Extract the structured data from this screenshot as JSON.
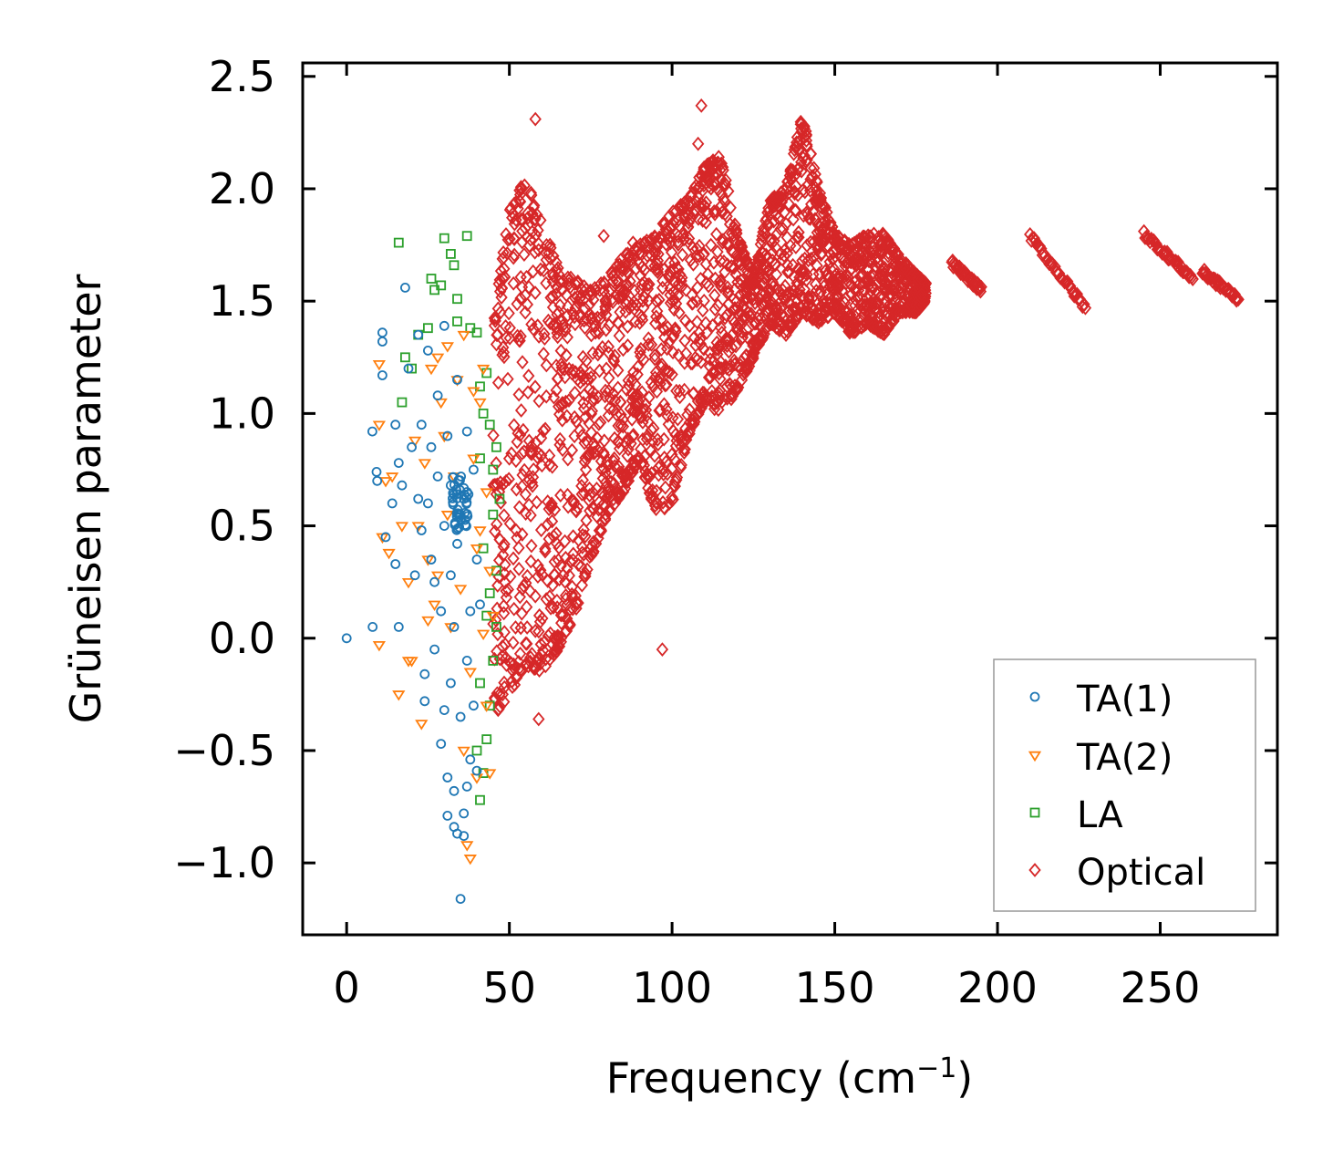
{
  "chart_data": {
    "type": "scatter",
    "title": "",
    "xlabel": "Frequency (cm",
    "xlabel_superscript": "−1",
    "xlabel_suffix": ")",
    "ylabel": "Grüneisen parameter",
    "xlim": [
      -13.5,
      286
    ],
    "ylim": [
      -1.32,
      2.56
    ],
    "xticks": [
      0,
      50,
      100,
      150,
      200,
      250
    ],
    "xtick_labels": [
      "0",
      "50",
      "100",
      "150",
      "200",
      "250"
    ],
    "yticks": [
      -1.0,
      -0.5,
      0.0,
      0.5,
      1.0,
      1.5,
      2.0,
      2.5
    ],
    "ytick_labels": [
      "−1.0",
      "−0.5",
      "0.0",
      "0.5",
      "1.0",
      "1.5",
      "2.0",
      "2.5"
    ],
    "grid": false,
    "legend_position": "lower-right",
    "series": [
      {
        "name": "TA(1)",
        "label": "TA(1)",
        "marker": "circle",
        "color": "#1f77b4",
        "points": [
          [
            0,
            0
          ],
          [
            8,
            0.05
          ],
          [
            7.9,
            0.92
          ],
          [
            9.2,
            0.74
          ],
          [
            9.4,
            0.7
          ],
          [
            11,
            1.36
          ],
          [
            11,
            1.32
          ],
          [
            11,
            1.17
          ],
          [
            12,
            0.45
          ],
          [
            14,
            0.6
          ],
          [
            15,
            0.95
          ],
          [
            15,
            0.33
          ],
          [
            16,
            0.78
          ],
          [
            16,
            0.05
          ],
          [
            17,
            0.68
          ],
          [
            18,
            1.56
          ],
          [
            19,
            1.2
          ],
          [
            20,
            0.85
          ],
          [
            22,
            1.35
          ],
          [
            22,
            0.62
          ],
          [
            23,
            0.48
          ],
          [
            24,
            -0.16
          ],
          [
            24,
            -0.28
          ],
          [
            25,
            1.28
          ],
          [
            26,
            0.85
          ],
          [
            27,
            0.25
          ],
          [
            28,
            1.08
          ],
          [
            29,
            -0.47
          ],
          [
            30,
            1.39
          ],
          [
            30,
            -0.32
          ],
          [
            31,
            -0.62
          ],
          [
            31,
            -0.79
          ],
          [
            32,
            0.28
          ],
          [
            33,
            -0.68
          ],
          [
            33,
            -0.84
          ],
          [
            34,
            1.15
          ],
          [
            34,
            -0.87
          ],
          [
            35,
            0.55
          ],
          [
            35,
            -1.16
          ],
          [
            36,
            -0.78
          ],
          [
            36,
            -0.88
          ],
          [
            37,
            -0.66
          ],
          [
            37,
            0.92
          ],
          [
            38,
            -0.54
          ],
          [
            39,
            0.75
          ],
          [
            40,
            -0.59
          ],
          [
            40,
            0.35
          ],
          [
            41,
            0.15
          ],
          [
            26,
            0.35
          ],
          [
            28,
            0.72
          ],
          [
            29,
            0.12
          ],
          [
            31,
            0.9
          ],
          [
            32,
            -0.2
          ],
          [
            33,
            0.05
          ],
          [
            35,
            -0.35
          ],
          [
            37,
            -0.1
          ],
          [
            21,
            0.28
          ],
          [
            23,
            0.95
          ],
          [
            25,
            0.6
          ],
          [
            27,
            -0.05
          ],
          [
            30,
            0.5
          ],
          [
            32,
            0.68
          ],
          [
            34,
            0.42
          ],
          [
            36,
            0.62
          ],
          [
            38,
            0.12
          ],
          [
            39,
            -0.3
          ]
        ],
        "cluster": {
          "center": [
            35,
            0.6
          ],
          "spread": [
            2.5,
            0.12
          ],
          "count": 40
        }
      },
      {
        "name": "TA(2)",
        "label": "TA(2)",
        "marker": "triangle-down",
        "color": "#ff7f0e",
        "points": [
          [
            10,
            0.95
          ],
          [
            10,
            1.22
          ],
          [
            10,
            -0.03
          ],
          [
            11,
            0.45
          ],
          [
            12,
            0.7
          ],
          [
            13,
            0.38
          ],
          [
            14,
            0.72
          ],
          [
            16,
            -0.25
          ],
          [
            17,
            0.5
          ],
          [
            19,
            -0.1
          ],
          [
            19,
            0.25
          ],
          [
            20,
            -0.1
          ],
          [
            21,
            0.88
          ],
          [
            22,
            0.5
          ],
          [
            23,
            -0.38
          ],
          [
            24,
            0.78
          ],
          [
            25,
            0.35
          ],
          [
            25,
            0.08
          ],
          [
            27,
            0.15
          ],
          [
            28,
            1.25
          ],
          [
            29,
            1.05
          ],
          [
            30,
            0.9
          ],
          [
            31,
            0.55
          ],
          [
            32,
            0.05
          ],
          [
            34,
            1.15
          ],
          [
            36,
            -0.5
          ],
          [
            37,
            -0.92
          ],
          [
            38,
            -0.98
          ],
          [
            39,
            0.8
          ],
          [
            40,
            0.4
          ],
          [
            41,
            1.05
          ],
          [
            42,
            1.2
          ],
          [
            43,
            0.65
          ],
          [
            43,
            -0.3
          ],
          [
            44,
            0.3
          ],
          [
            44,
            -0.6
          ],
          [
            45,
            0.1
          ],
          [
            26,
            1.2
          ],
          [
            28,
            0.28
          ],
          [
            33,
            0.72
          ],
          [
            35,
            0.22
          ],
          [
            38,
            -0.15
          ],
          [
            40,
            -0.62
          ],
          [
            42,
            0.02
          ],
          [
            31,
            1.3
          ],
          [
            36,
            1.35
          ],
          [
            39,
            1.1
          ],
          [
            41,
            0.48
          ]
        ]
      },
      {
        "name": "LA",
        "label": "LA",
        "marker": "square",
        "color": "#2ca02c",
        "points": [
          [
            16,
            1.76
          ],
          [
            17,
            1.05
          ],
          [
            18,
            1.25
          ],
          [
            20,
            1.2
          ],
          [
            22,
            1.35
          ],
          [
            25,
            1.38
          ],
          [
            26,
            1.6
          ],
          [
            27,
            1.55
          ],
          [
            29,
            1.57
          ],
          [
            30,
            1.78
          ],
          [
            32,
            1.71
          ],
          [
            33,
            1.66
          ],
          [
            34,
            1.51
          ],
          [
            34,
            1.41
          ],
          [
            37,
            1.79
          ],
          [
            38,
            1.38
          ],
          [
            40,
            1.36
          ],
          [
            41,
            0.8
          ],
          [
            41,
            -0.72
          ],
          [
            42,
            -0.6
          ],
          [
            43,
            1.18
          ],
          [
            43,
            -0.45
          ],
          [
            44,
            0.2
          ],
          [
            44,
            0.95
          ],
          [
            45,
            0.55
          ],
          [
            45,
            -0.1
          ],
          [
            46,
            0.85
          ],
          [
            46,
            0.3
          ],
          [
            47,
            0.62
          ],
          [
            42,
            1.0
          ],
          [
            43,
            0.1
          ],
          [
            44,
            -0.3
          ],
          [
            45,
            0.75
          ],
          [
            41,
            -0.2
          ],
          [
            42,
            0.4
          ],
          [
            46,
            0.05
          ],
          [
            40,
            -0.5
          ],
          [
            41,
            1.12
          ]
        ]
      },
      {
        "name": "Optical",
        "label": "Optical",
        "marker": "diamond",
        "color": "#d62728",
        "points": [
          [
            58,
            2.31
          ],
          [
            59,
            -0.36
          ],
          [
            79,
            1.79
          ],
          [
            88,
            1.76
          ],
          [
            109,
            2.37
          ],
          [
            108,
            2.2
          ],
          [
            111,
            1.62
          ],
          [
            135,
            1.35
          ],
          [
            140,
            1.68
          ],
          [
            97,
            -0.05
          ],
          [
            52,
            -0.17
          ],
          [
            47,
            -0.25
          ]
        ],
        "region_envelope": {
          "x": [
            45,
            50,
            55,
            60,
            65,
            70,
            75,
            80,
            85,
            90,
            95,
            100,
            105,
            110,
            115,
            120,
            125,
            130,
            135,
            140,
            145,
            150,
            155,
            160,
            165,
            170,
            175,
            178
          ],
          "lower": [
            -0.35,
            -0.25,
            -0.12,
            -0.15,
            -0.05,
            0.1,
            0.35,
            0.55,
            0.65,
            0.8,
            0.55,
            0.6,
            0.9,
            1.05,
            1.0,
            1.1,
            1.25,
            1.4,
            1.35,
            1.45,
            1.4,
            1.45,
            1.35,
            1.4,
            1.35,
            1.45,
            1.45,
            1.5
          ],
          "upper": [
            1.4,
            1.9,
            2.05,
            1.85,
            1.65,
            1.6,
            1.55,
            1.6,
            1.7,
            1.75,
            1.8,
            1.9,
            1.95,
            2.1,
            2.15,
            1.8,
            1.6,
            1.95,
            2.0,
            2.33,
            2.0,
            1.8,
            1.75,
            1.8,
            1.8,
            1.7,
            1.62,
            1.58
          ]
        },
        "line_segments": [
          {
            "x": [
              186,
              195
            ],
            "y": [
              1.67,
              1.55
            ]
          },
          {
            "x": [
              210,
              227
            ],
            "y": [
              1.79,
              1.47
            ]
          },
          {
            "x": [
              245,
              260
            ],
            "y": [
              1.8,
              1.6
            ]
          },
          {
            "x": [
              263,
              274
            ],
            "y": [
              1.63,
              1.51
            ]
          }
        ]
      }
    ]
  }
}
